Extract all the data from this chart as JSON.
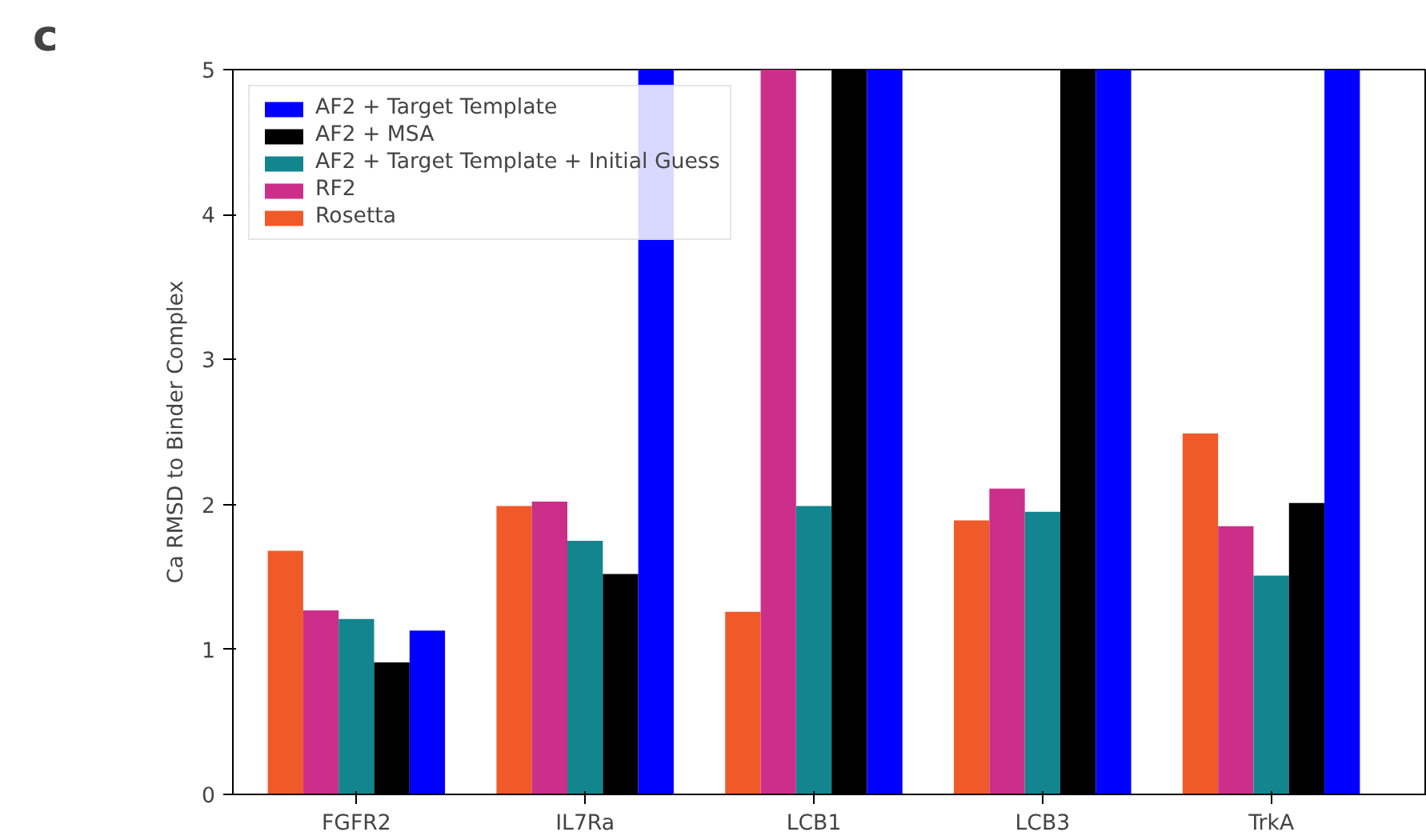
{
  "chart_data": {
    "type": "bar",
    "ylabel": "Ca RMSD to Binder Complex",
    "annotations": [
      "c"
    ],
    "categories": [
      "FGFR2",
      "IL7Ra",
      "LCB1",
      "LCB3",
      "TrkA"
    ],
    "series": [
      {
        "name": "Rosetta",
        "color": "#f05a28",
        "values": [
          1.68,
          1.99,
          1.26,
          1.89,
          2.49
        ]
      },
      {
        "name": "RF2",
        "color": "#cc2f8a",
        "values": [
          1.27,
          2.02,
          5,
          2.11,
          1.85
        ]
      },
      {
        "name": "AF2 + Target Template + Initial Guess",
        "color": "#12858f",
        "values": [
          1.21,
          1.75,
          1.99,
          1.95,
          1.51
        ]
      },
      {
        "name": "AF2 + MSA",
        "color": "#000000",
        "values": [
          0.91,
          1.52,
          5,
          5,
          2.01
        ]
      },
      {
        "name": "AF2 + Target Template",
        "color": "#0000ff",
        "values": [
          1.13,
          5,
          5,
          5,
          5
        ]
      }
    ],
    "ylim": [
      0,
      5
    ],
    "yticks": [
      0,
      1,
      2,
      3,
      4,
      5
    ],
    "legend": "top left"
  }
}
